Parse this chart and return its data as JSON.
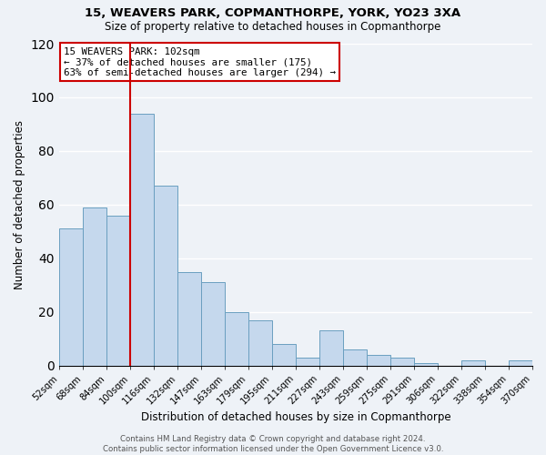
{
  "title": "15, WEAVERS PARK, COPMANTHORPE, YORK, YO23 3XA",
  "subtitle": "Size of property relative to detached houses in Copmanthorpe",
  "xlabel": "Distribution of detached houses by size in Copmanthorpe",
  "ylabel": "Number of detached properties",
  "bar_values": [
    51,
    59,
    56,
    94,
    67,
    35,
    31,
    20,
    17,
    8,
    3,
    13,
    6,
    4,
    3,
    1,
    0,
    2,
    0,
    2
  ],
  "bin_labels": [
    "52sqm",
    "68sqm",
    "84sqm",
    "100sqm",
    "116sqm",
    "132sqm",
    "147sqm",
    "163sqm",
    "179sqm",
    "195sqm",
    "211sqm",
    "227sqm",
    "243sqm",
    "259sqm",
    "275sqm",
    "291sqm",
    "306sqm",
    "322sqm",
    "338sqm",
    "354sqm",
    "370sqm"
  ],
  "bar_color": "#c5d8ed",
  "bar_edge_color": "#6a9fc0",
  "marker_line_color": "#cc0000",
  "marker_line_index": 3,
  "ylim": [
    0,
    120
  ],
  "yticks": [
    0,
    20,
    40,
    60,
    80,
    100,
    120
  ],
  "annotation_box_text": "15 WEAVERS PARK: 102sqm\n← 37% of detached houses are smaller (175)\n63% of semi-detached houses are larger (294) →",
  "annotation_box_color": "#cc0000",
  "footer_line1": "Contains HM Land Registry data © Crown copyright and database right 2024.",
  "footer_line2": "Contains public sector information licensed under the Open Government Licence v3.0.",
  "bg_color": "#eef2f7",
  "grid_color": "#ffffff"
}
